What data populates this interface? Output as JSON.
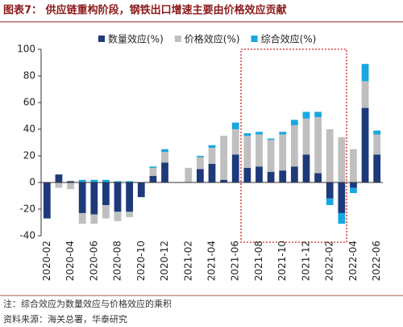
{
  "chart_data": {
    "type": "bar",
    "title": "图表7： 供应链重构阶段，钢铁出口增速主要由价格效应贡献",
    "categories": [
      "2020-02",
      null,
      "2020-04",
      null,
      "2020-06",
      null,
      "2020-08",
      null,
      "2020-10",
      null,
      "2020-12",
      null,
      "2021-02",
      null,
      "2021-04",
      null,
      "2021-06",
      null,
      "2021-08",
      null,
      "2021-10",
      null,
      "2021-12",
      null,
      "2022-02",
      null,
      "2022-04",
      null,
      "2022-06"
    ],
    "series": [
      {
        "name": "数量效应(%)",
        "color": "#1f3a7a",
        "values": [
          -27,
          6,
          1,
          -23,
          -24,
          -17,
          -22,
          -22,
          -11,
          5,
          15,
          0,
          0,
          10,
          14,
          2,
          21,
          11,
          12,
          8,
          9,
          12,
          21,
          7,
          -12,
          -23,
          -4,
          56,
          21
        ]
      },
      {
        "name": "价格效应(%)",
        "color": "#bfbfbf",
        "values": [
          0,
          -4,
          -5,
          -8,
          -7,
          -10,
          -7,
          -4,
          0,
          6,
          8,
          0,
          11,
          9,
          12,
          33,
          19,
          24,
          24,
          24,
          27,
          31,
          27,
          42,
          40,
          34,
          25,
          20,
          15
        ]
      },
      {
        "name": "综合效应(%)",
        "color": "#19a7e0",
        "values": [
          0,
          0,
          0,
          2,
          2,
          2,
          1,
          1,
          0,
          1,
          2,
          0,
          0,
          1,
          2,
          0,
          5,
          2,
          2,
          1,
          2,
          4,
          5,
          4,
          -5,
          -8,
          -4,
          13,
          3
        ]
      }
    ],
    "stacked": true,
    "ylim": [
      -40,
      100
    ],
    "yticks": [
      -40,
      -20,
      0,
      20,
      40,
      60,
      80,
      100
    ],
    "notes": [
      "注：综合效应为数量效应与价格效应的乘积",
      "资料来源：海关总署，华泰研究"
    ]
  }
}
